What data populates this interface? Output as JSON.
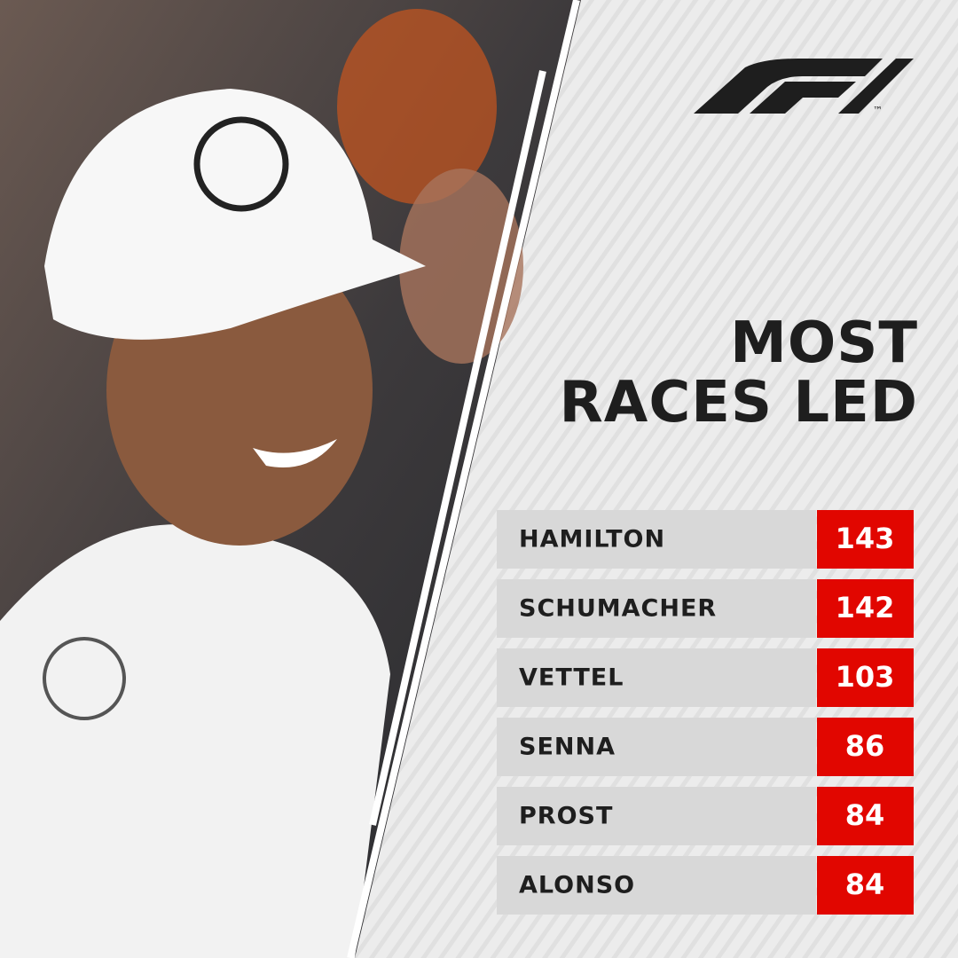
{
  "title": [
    "MOST",
    "RACES LED"
  ],
  "logo": {
    "trademark": "™"
  },
  "table": {
    "rows": [
      [
        "HAMILTON",
        143
      ],
      [
        "SCHUMACHER",
        142
      ],
      [
        "VETTEL",
        103
      ],
      [
        "SENNA",
        86
      ],
      [
        "PROST",
        84
      ],
      [
        "ALONSO",
        84
      ]
    ]
  }
}
